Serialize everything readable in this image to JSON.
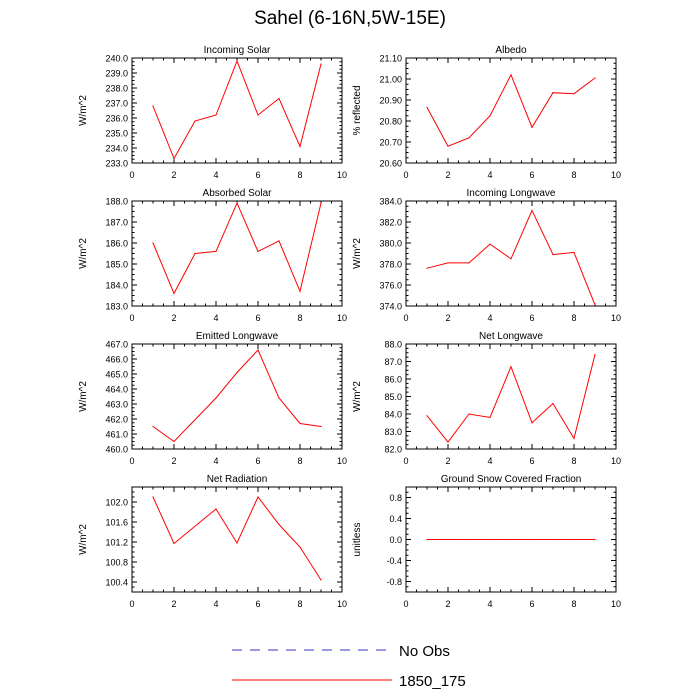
{
  "title": "Sahel (6-16N,5W-15E)",
  "legend": [
    {
      "name": "No Obs",
      "color": "#3333cc",
      "dashed": true
    },
    {
      "name": "1850_175",
      "color": "#ff0000",
      "dashed": false
    }
  ],
  "chart_data": [
    {
      "type": "line",
      "title": "Incoming Solar",
      "ylabel": "W/m^2",
      "xlim": [
        0,
        10
      ],
      "ylim": [
        233.0,
        240.0
      ],
      "xticks": [
        0,
        2,
        4,
        6,
        8,
        10
      ],
      "yticks": [
        233.0,
        234.0,
        235.0,
        236.0,
        237.0,
        238.0,
        239.0,
        240.0
      ],
      "ytick_labels": [
        "233.0",
        "234.0",
        "235.0",
        "236.0",
        "237.0",
        "238.0",
        "239.0",
        "240.0"
      ],
      "series": [
        {
          "name": "1850_175",
          "color": "#ff0000",
          "x": [
            1,
            2,
            3,
            4,
            5,
            6,
            7,
            8,
            9
          ],
          "values": [
            236.8,
            233.3,
            235.8,
            236.2,
            239.8,
            236.2,
            237.3,
            234.1,
            239.6
          ]
        }
      ]
    },
    {
      "type": "line",
      "title": "Albedo",
      "ylabel": "% reflected",
      "xlim": [
        0,
        10
      ],
      "ylim": [
        20.6,
        21.1
      ],
      "xticks": [
        0,
        2,
        4,
        6,
        8,
        10
      ],
      "yticks": [
        20.6,
        20.7,
        20.8,
        20.9,
        21.0,
        21.1
      ],
      "ytick_labels": [
        "20.60",
        "20.70",
        "20.80",
        "20.90",
        "21.00",
        "21.10"
      ],
      "series": [
        {
          "name": "1850_175",
          "color": "#ff0000",
          "x": [
            1,
            2,
            3,
            4,
            5,
            6,
            7,
            8,
            9
          ],
          "values": [
            20.865,
            20.68,
            20.72,
            20.825,
            21.02,
            20.77,
            20.935,
            20.93,
            21.005
          ]
        }
      ]
    },
    {
      "type": "line",
      "title": "Absorbed Solar",
      "ylabel": "W/m^2",
      "xlim": [
        0,
        10
      ],
      "ylim": [
        183.0,
        188.0
      ],
      "xticks": [
        0,
        2,
        4,
        6,
        8,
        10
      ],
      "yticks": [
        183.0,
        184.0,
        185.0,
        186.0,
        187.0,
        188.0
      ],
      "ytick_labels": [
        "183.0",
        "184.0",
        "185.0",
        "186.0",
        "187.0",
        "188.0"
      ],
      "series": [
        {
          "name": "1850_175",
          "color": "#ff0000",
          "x": [
            1,
            2,
            3,
            4,
            5,
            6,
            7,
            8,
            9
          ],
          "values": [
            186.0,
            183.6,
            185.5,
            185.6,
            187.9,
            185.6,
            186.1,
            183.7,
            187.9
          ]
        }
      ]
    },
    {
      "type": "line",
      "title": "Incoming Longwave",
      "ylabel": "W/m^2",
      "xlim": [
        0,
        10
      ],
      "ylim": [
        374.0,
        384.0
      ],
      "xticks": [
        0,
        2,
        4,
        6,
        8,
        10
      ],
      "yticks": [
        374.0,
        376.0,
        378.0,
        380.0,
        382.0,
        384.0
      ],
      "ytick_labels": [
        "374.0",
        "376.0",
        "378.0",
        "380.0",
        "382.0",
        "384.0"
      ],
      "series": [
        {
          "name": "1850_175",
          "color": "#ff0000",
          "x": [
            1,
            2,
            3,
            4,
            5,
            6,
            7,
            8,
            9
          ],
          "values": [
            377.6,
            378.1,
            378.1,
            379.9,
            378.5,
            383.1,
            378.9,
            379.1,
            374.1
          ]
        }
      ]
    },
    {
      "type": "line",
      "title": "Emitted Longwave",
      "ylabel": "W/m^2",
      "xlim": [
        0,
        10
      ],
      "ylim": [
        460.0,
        467.0
      ],
      "xticks": [
        0,
        2,
        4,
        6,
        8,
        10
      ],
      "yticks": [
        460.0,
        461.0,
        462.0,
        463.0,
        464.0,
        465.0,
        466.0,
        467.0
      ],
      "ytick_labels": [
        "460.0",
        "461.0",
        "462.0",
        "463.0",
        "464.0",
        "465.0",
        "466.0",
        "467.0"
      ],
      "series": [
        {
          "name": "1850_175",
          "color": "#ff0000",
          "x": [
            1,
            2,
            4,
            5,
            6,
            7,
            8,
            9
          ],
          "values": [
            461.5,
            460.5,
            463.4,
            465.1,
            466.6,
            463.4,
            461.7,
            461.5
          ]
        }
      ]
    },
    {
      "type": "line",
      "title": "Net Longwave",
      "ylabel": "W/m^2",
      "xlim": [
        0,
        10
      ],
      "ylim": [
        82.0,
        88.0
      ],
      "xticks": [
        0,
        2,
        4,
        6,
        8,
        10
      ],
      "yticks": [
        82.0,
        83.0,
        84.0,
        85.0,
        86.0,
        87.0,
        88.0
      ],
      "ytick_labels": [
        "82.0",
        "83.0",
        "84.0",
        "85.0",
        "86.0",
        "87.0",
        "88.0"
      ],
      "series": [
        {
          "name": "1850_175",
          "color": "#ff0000",
          "x": [
            1,
            2,
            3,
            4,
            5,
            6,
            7,
            8,
            9
          ],
          "values": [
            83.9,
            82.4,
            84.0,
            83.8,
            86.7,
            83.5,
            84.6,
            82.6,
            87.4
          ]
        }
      ]
    },
    {
      "type": "line",
      "title": "Net Radiation",
      "ylabel": "W/m^2",
      "xlim": [
        0,
        10
      ],
      "ylim": [
        100.2,
        102.3
      ],
      "xticks": [
        0,
        2,
        4,
        6,
        8,
        10
      ],
      "yticks": [
        100.4,
        100.8,
        101.2,
        101.6,
        102.0
      ],
      "ytick_labels": [
        "100.4",
        "100.8",
        "101.2",
        "101.6",
        "102.0"
      ],
      "series": [
        {
          "name": "1850_175",
          "color": "#ff0000",
          "x": [
            1,
            2,
            4,
            5,
            6,
            7,
            8,
            9
          ],
          "values": [
            102.1,
            101.17,
            101.86,
            101.18,
            102.1,
            101.55,
            101.1,
            100.44
          ]
        }
      ]
    },
    {
      "type": "line",
      "title": "Ground Snow Covered Fraction",
      "ylabel": "unitless",
      "xlim": [
        0,
        10
      ],
      "ylim": [
        -1.0,
        1.0
      ],
      "xticks": [
        0,
        2,
        4,
        6,
        8,
        10
      ],
      "yticks": [
        -0.8,
        -0.4,
        0.0,
        0.4,
        0.8
      ],
      "ytick_labels": [
        "-0.8",
        "-0.4",
        "0.0",
        "0.4",
        "0.8"
      ],
      "series": [
        {
          "name": "1850_175",
          "color": "#ff0000",
          "x": [
            1,
            2,
            3,
            4,
            5,
            6,
            7,
            8,
            9
          ],
          "values": [
            0,
            0,
            0,
            0,
            0,
            0,
            0,
            0,
            0
          ]
        }
      ]
    }
  ]
}
